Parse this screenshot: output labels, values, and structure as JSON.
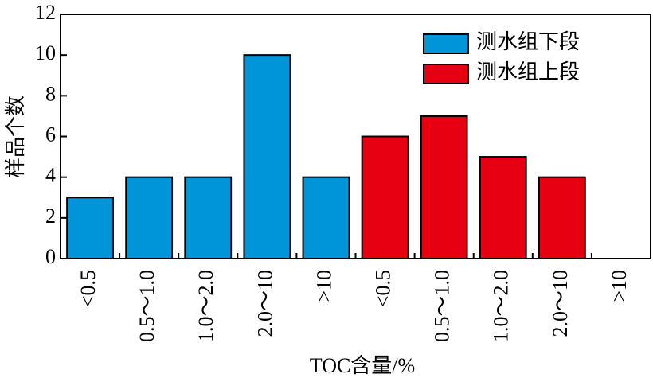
{
  "chart_data": {
    "type": "bar",
    "categories": [
      "<0.5",
      "0.5～1.0",
      "1.0～2.0",
      "2.0～10",
      ">10",
      "<0.5",
      "0.5～1.0",
      "1.0～2.0",
      "2.0～10",
      ">10"
    ],
    "series": [
      {
        "name": "测水组下段",
        "color": "#0095d9",
        "values": [
          3,
          4,
          4,
          10,
          4,
          null,
          null,
          null,
          null,
          null
        ]
      },
      {
        "name": "测水组上段",
        "color": "#e60012",
        "values": [
          null,
          null,
          null,
          null,
          null,
          6,
          7,
          5,
          4,
          0
        ]
      }
    ],
    "xlabel": "TOC含量/%",
    "ylabel": "样品个数",
    "ylim": [
      0,
      12
    ],
    "yticks": [
      0,
      2,
      4,
      6,
      8,
      10,
      12
    ],
    "legend": "upper right"
  }
}
